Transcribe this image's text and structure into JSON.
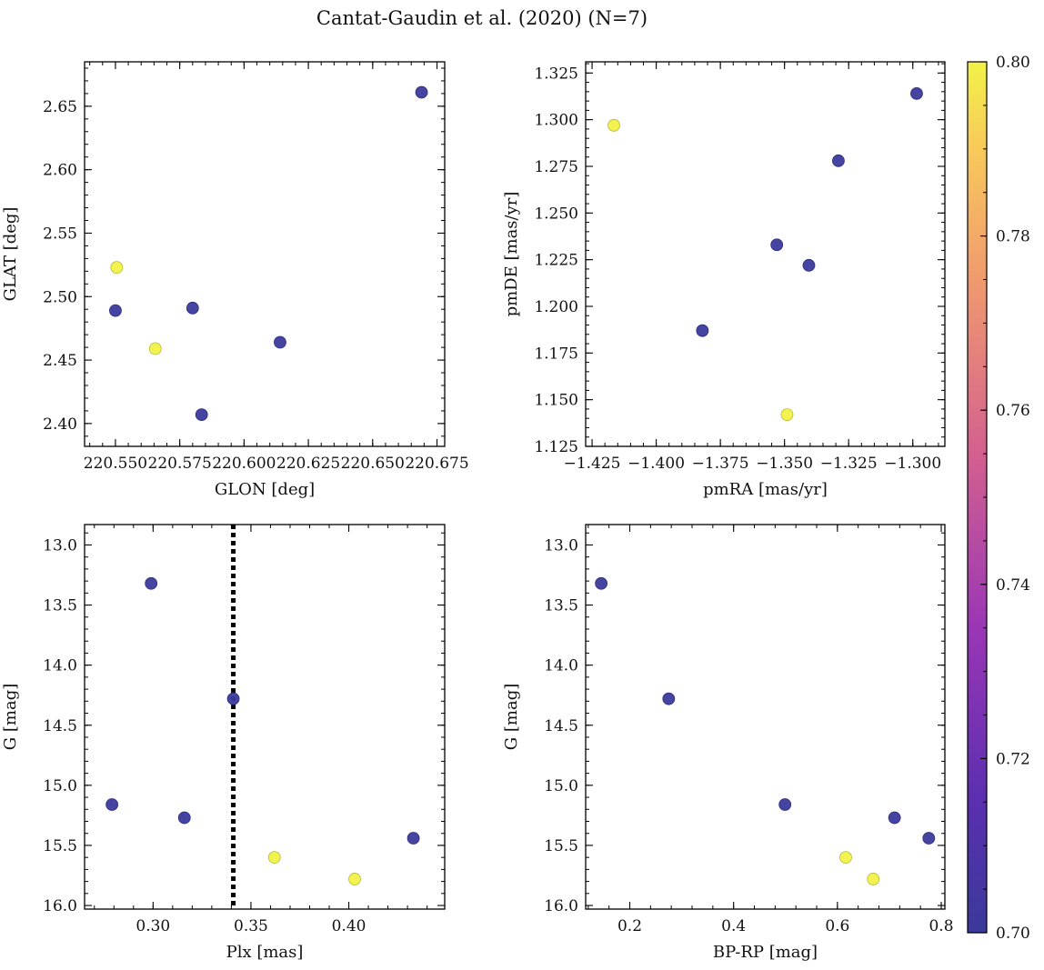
{
  "figure": {
    "title": "Cantat-Gaudin et al. (2020) (N=7)"
  },
  "colors": {
    "low": "#3b3a9c",
    "high": "#f2f247",
    "marker_edge_low": "#2e2d80",
    "marker_edge_high": "#b8b83a"
  },
  "colorbar": {
    "range": [
      0.7,
      0.8
    ],
    "ticks": [
      "0.70",
      "0.72",
      "0.74",
      "0.76",
      "0.78",
      "0.80"
    ],
    "colormap": "plasma"
  },
  "chart_data": [
    {
      "type": "scatter",
      "xlabel": "GLON [deg]",
      "ylabel": "GLAT [deg]",
      "xlim": [
        220.538,
        220.678
      ],
      "ylim": [
        2.382,
        2.685
      ],
      "x_ticks": [
        "220.550",
        "220.575",
        "220.600",
        "220.625",
        "220.650",
        "220.675"
      ],
      "y_ticks": [
        "2.40",
        "2.45",
        "2.50",
        "2.55",
        "2.60",
        "2.65"
      ],
      "y_inverted": false,
      "points": [
        {
          "x": 220.5505,
          "y": 2.523,
          "c": 0.8
        },
        {
          "x": 220.55,
          "y": 2.489,
          "c": 0.7
        },
        {
          "x": 220.5655,
          "y": 2.459,
          "c": 0.8
        },
        {
          "x": 220.58,
          "y": 2.491,
          "c": 0.7
        },
        {
          "x": 220.5835,
          "y": 2.407,
          "c": 0.7
        },
        {
          "x": 220.614,
          "y": 2.464,
          "c": 0.7
        },
        {
          "x": 220.669,
          "y": 2.661,
          "c": 0.7
        }
      ]
    },
    {
      "type": "scatter",
      "xlabel": "pmRA [mas/yr]",
      "ylabel": "pmDE [mas/yr]",
      "xlim": [
        -1.4275,
        -1.2875
      ],
      "ylim": [
        1.125,
        1.331
      ],
      "x_ticks": [
        "−1.425",
        "−1.400",
        "−1.375",
        "−1.350",
        "−1.325",
        "−1.300"
      ],
      "y_ticks": [
        "1.125",
        "1.150",
        "1.175",
        "1.200",
        "1.225",
        "1.250",
        "1.275",
        "1.300",
        "1.325"
      ],
      "y_inverted": false,
      "points": [
        {
          "x": -1.4165,
          "y": 1.297,
          "c": 0.8
        },
        {
          "x": -1.2985,
          "y": 1.314,
          "c": 0.7
        },
        {
          "x": -1.329,
          "y": 1.278,
          "c": 0.7
        },
        {
          "x": -1.353,
          "y": 1.233,
          "c": 0.7
        },
        {
          "x": -1.3405,
          "y": 1.222,
          "c": 0.7
        },
        {
          "x": -1.382,
          "y": 1.187,
          "c": 0.7
        },
        {
          "x": -1.349,
          "y": 1.142,
          "c": 0.8
        }
      ]
    },
    {
      "type": "scatter",
      "xlabel": "Plx [mas]",
      "ylabel": "G [mag]",
      "xlim": [
        0.265,
        0.449
      ],
      "ylim": [
        16.03,
        12.83
      ],
      "x_ticks": [
        "0.30",
        "0.35",
        "0.40"
      ],
      "y_ticks": [
        "13.0",
        "13.5",
        "14.0",
        "14.5",
        "15.0",
        "15.5",
        "16.0"
      ],
      "y_inverted": true,
      "vline": {
        "x": 0.341,
        "style": "dotted"
      },
      "points": [
        {
          "x": 0.299,
          "y": 13.32,
          "c": 0.7
        },
        {
          "x": 0.341,
          "y": 14.28,
          "c": 0.7
        },
        {
          "x": 0.279,
          "y": 15.16,
          "c": 0.7
        },
        {
          "x": 0.316,
          "y": 15.27,
          "c": 0.7
        },
        {
          "x": 0.362,
          "y": 15.6,
          "c": 0.8
        },
        {
          "x": 0.403,
          "y": 15.78,
          "c": 0.8
        },
        {
          "x": 0.433,
          "y": 15.44,
          "c": 0.7
        }
      ]
    },
    {
      "type": "scatter",
      "xlabel": "BP-RP [mag]",
      "ylabel": "G [mag]",
      "xlim": [
        0.115,
        0.807
      ],
      "ylim": [
        16.03,
        12.83
      ],
      "x_ticks": [
        "0.2",
        "0.4",
        "0.6",
        "0.8"
      ],
      "y_ticks": [
        "13.0",
        "13.5",
        "14.0",
        "14.5",
        "15.0",
        "15.5",
        "16.0"
      ],
      "y_inverted": true,
      "points": [
        {
          "x": 0.145,
          "y": 13.32,
          "c": 0.7
        },
        {
          "x": 0.275,
          "y": 14.28,
          "c": 0.7
        },
        {
          "x": 0.499,
          "y": 15.16,
          "c": 0.7
        },
        {
          "x": 0.71,
          "y": 15.27,
          "c": 0.7
        },
        {
          "x": 0.776,
          "y": 15.44,
          "c": 0.7
        },
        {
          "x": 0.616,
          "y": 15.6,
          "c": 0.8
        },
        {
          "x": 0.669,
          "y": 15.78,
          "c": 0.8
        }
      ]
    }
  ]
}
